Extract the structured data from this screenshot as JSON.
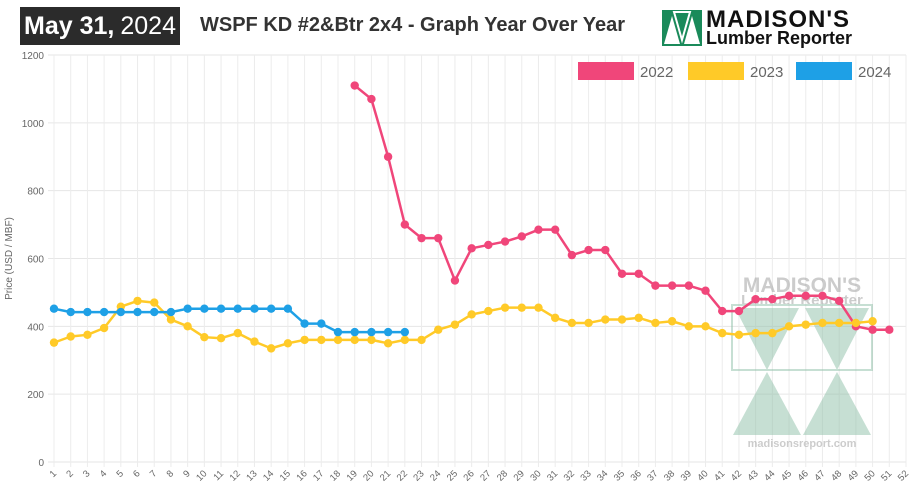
{
  "header": {
    "date_month_day": "May 31,",
    "date_year": "2024",
    "title": "WSPF KD #2&Btr 2x4 - Graph Year Over Year",
    "logo_name": "MADISON'S",
    "logo_sub": "Lumber Reporter"
  },
  "watermark": {
    "name": "MADISON'S",
    "sub": "Lumber Reporter",
    "url": "madisonsreport.com"
  },
  "colors": {
    "2022": "#f0467a",
    "2023": "#ffca28",
    "2024": "#1ea0e6",
    "logo_green": "#1a8a5a"
  },
  "chart_data": {
    "type": "line",
    "title": "WSPF KD #2&Btr 2x4 - Graph Year Over Year",
    "ylabel": "Price (USD / MBF)",
    "xlabel": "",
    "ylim": [
      0,
      1200
    ],
    "yticks": [
      0,
      200,
      400,
      600,
      800,
      1000,
      1200
    ],
    "x": [
      1,
      2,
      3,
      4,
      5,
      6,
      7,
      8,
      9,
      10,
      11,
      12,
      13,
      14,
      15,
      16,
      17,
      18,
      19,
      20,
      21,
      22,
      23,
      24,
      25,
      26,
      27,
      28,
      29,
      30,
      31,
      32,
      33,
      34,
      35,
      36,
      37,
      38,
      39,
      40,
      41,
      42,
      43,
      44,
      45,
      46,
      47,
      48,
      49,
      50,
      51,
      52
    ],
    "grid": true,
    "legend_position": "top-right",
    "series": [
      {
        "name": "2022",
        "color": "#f0467a",
        "x": [
          19,
          20,
          21,
          22,
          23,
          24,
          25,
          26,
          27,
          28,
          29,
          30,
          31,
          32,
          33,
          34,
          35,
          36,
          37,
          38,
          39,
          40,
          41,
          42,
          43,
          44,
          45,
          46,
          47,
          48,
          49,
          50,
          51
        ],
        "values": [
          1110,
          1070,
          900,
          700,
          660,
          660,
          535,
          630,
          640,
          650,
          665,
          685,
          685,
          610,
          625,
          625,
          555,
          555,
          520,
          520,
          520,
          505,
          445,
          445,
          480,
          480,
          490,
          490,
          490,
          475,
          400,
          390,
          390
        ]
      },
      {
        "name": "2023",
        "color": "#ffca28",
        "x": [
          1,
          2,
          3,
          4,
          5,
          6,
          7,
          8,
          9,
          10,
          11,
          12,
          13,
          14,
          15,
          16,
          17,
          18,
          19,
          20,
          21,
          22,
          23,
          24,
          25,
          26,
          27,
          28,
          29,
          30,
          31,
          32,
          33,
          34,
          35,
          36,
          37,
          38,
          39,
          40,
          41,
          42,
          43,
          44,
          45,
          46,
          47,
          48,
          49,
          50
        ],
        "values": [
          352,
          370,
          375,
          395,
          458,
          475,
          470,
          420,
          400,
          368,
          365,
          380,
          355,
          335,
          350,
          360,
          360,
          360,
          360,
          360,
          350,
          360,
          360,
          390,
          405,
          435,
          445,
          455,
          455,
          455,
          425,
          410,
          410,
          420,
          420,
          425,
          410,
          415,
          400,
          400,
          380,
          375,
          380,
          380,
          400,
          405,
          410,
          410,
          410,
          415
        ]
      },
      {
        "name": "2024",
        "color": "#1ea0e6",
        "x": [
          1,
          2,
          3,
          4,
          5,
          6,
          7,
          8,
          9,
          10,
          11,
          12,
          13,
          14,
          15,
          16,
          17,
          18,
          19,
          20,
          21,
          22
        ],
        "values": [
          452,
          442,
          442,
          442,
          442,
          442,
          442,
          442,
          452,
          452,
          452,
          452,
          452,
          452,
          452,
          408,
          408,
          383,
          383,
          383,
          383,
          383
        ]
      }
    ]
  }
}
